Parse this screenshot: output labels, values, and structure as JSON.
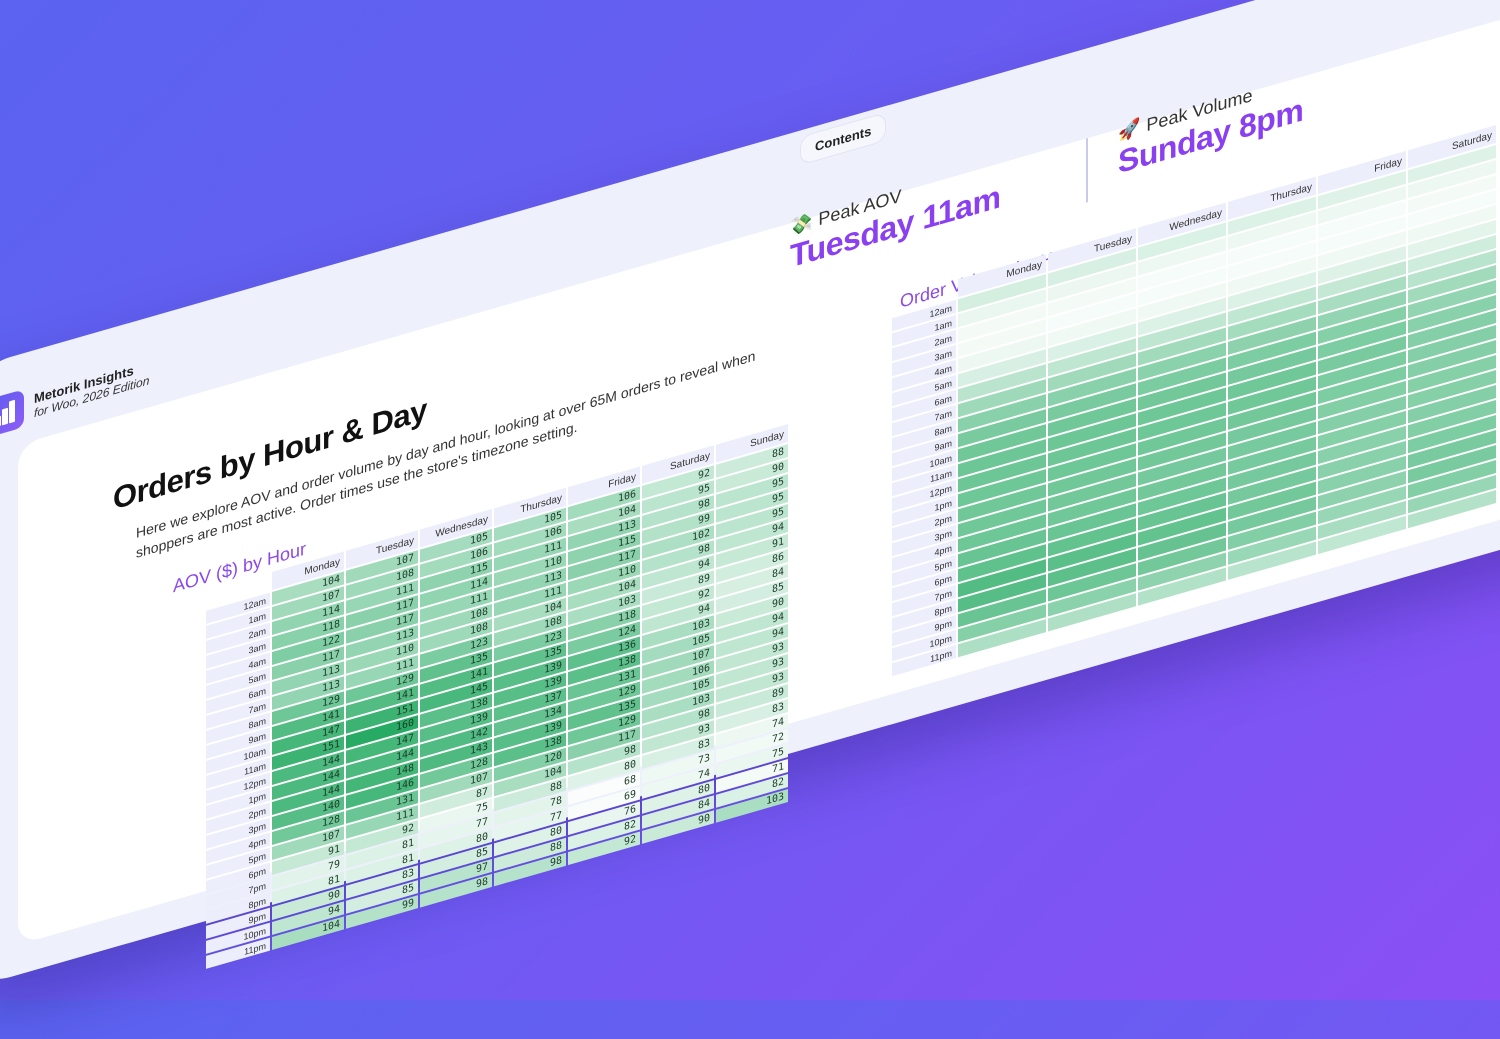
{
  "topbar": {
    "contents_label": "Contents"
  },
  "brand": {
    "name": "Metorik Insights",
    "edition": "for Woo, 2026 Edition"
  },
  "page": {
    "title": "Orders by Hour & Day",
    "description": "Here we explore AOV and order volume by day and hour, looking at over 65M orders to reveal when shoppers are most active. Order times use the store's timezone setting."
  },
  "stats": {
    "peak_aov": {
      "label": "Peak AOV",
      "value": "Tuesday 11am",
      "icon": "money-with-wings-icon"
    },
    "peak_volume": {
      "label": "Peak Volume",
      "value": "Sunday 8pm",
      "icon": "rocket-icon"
    }
  },
  "colors": {
    "accent": "#8a3ff0",
    "heat_low": "#ffffff",
    "heat_high": "#27ab64"
  },
  "aov_chart": {
    "heading": "AOV ($) by Hour",
    "days": [
      "Monday",
      "Tuesday",
      "Wednesday",
      "Thursday",
      "Friday",
      "Saturday",
      "Sunday"
    ],
    "hours": [
      "12am",
      "1am",
      "2am",
      "3am",
      "4am",
      "5am",
      "6am",
      "7am",
      "8am",
      "9am",
      "10am",
      "11am",
      "12pm",
      "1pm",
      "2pm",
      "3pm",
      "4pm",
      "5pm",
      "6pm",
      "7pm",
      "8pm",
      "9pm",
      "10pm",
      "11pm"
    ],
    "values": [
      [
        104,
        107,
        105,
        105,
        106,
        92,
        88
      ],
      [
        107,
        108,
        106,
        106,
        104,
        95,
        90
      ],
      [
        114,
        111,
        115,
        111,
        113,
        98,
        95
      ],
      [
        118,
        117,
        114,
        110,
        115,
        99,
        95
      ],
      [
        122,
        117,
        111,
        113,
        117,
        102,
        95
      ],
      [
        117,
        113,
        108,
        111,
        110,
        98,
        94
      ],
      [
        113,
        110,
        108,
        104,
        104,
        94,
        91
      ],
      [
        113,
        111,
        123,
        108,
        103,
        89,
        86
      ],
      [
        129,
        129,
        135,
        123,
        118,
        92,
        84
      ],
      [
        141,
        141,
        141,
        135,
        124,
        94,
        85
      ],
      [
        147,
        151,
        145,
        139,
        136,
        103,
        90
      ],
      [
        151,
        160,
        138,
        139,
        138,
        105,
        94
      ],
      [
        144,
        147,
        139,
        137,
        131,
        107,
        94
      ],
      [
        144,
        144,
        142,
        134,
        129,
        106,
        93
      ],
      [
        144,
        148,
        143,
        139,
        135,
        105,
        93
      ],
      [
        140,
        146,
        128,
        138,
        129,
        103,
        93
      ],
      [
        128,
        131,
        107,
        120,
        117,
        98,
        89
      ],
      [
        107,
        111,
        87,
        104,
        98,
        93,
        83
      ],
      [
        91,
        92,
        75,
        88,
        80,
        83,
        74
      ],
      [
        79,
        81,
        77,
        78,
        68,
        73,
        72
      ],
      [
        81,
        81,
        80,
        77,
        69,
        74,
        75
      ],
      [
        90,
        83,
        85,
        80,
        76,
        80,
        71
      ],
      [
        94,
        85,
        97,
        88,
        82,
        84,
        82
      ],
      [
        104,
        99,
        98,
        98,
        92,
        90,
        103
      ]
    ]
  },
  "volume_chart": {
    "heading": "Order Volume by Hour",
    "days": [
      "Monday",
      "Tuesday",
      "Wednesday",
      "Thursday",
      "Friday",
      "Saturday"
    ],
    "hours": [
      "12am",
      "1am",
      "2am",
      "3am",
      "4am",
      "5am",
      "6am",
      "7am",
      "8am",
      "9am",
      "10am",
      "11am",
      "12pm",
      "1pm",
      "2pm",
      "3pm",
      "4pm",
      "5pm",
      "6pm",
      "7pm",
      "8pm",
      "9pm",
      "10pm",
      "11pm"
    ],
    "levels": [
      [
        0.2,
        0.18,
        0.17,
        0.16,
        0.15,
        0.15
      ],
      [
        0.1,
        0.09,
        0.08,
        0.08,
        0.08,
        0.08
      ],
      [
        0.05,
        0.05,
        0.04,
        0.04,
        0.04,
        0.05
      ],
      [
        0.05,
        0.04,
        0.04,
        0.04,
        0.04,
        0.04
      ],
      [
        0.08,
        0.07,
        0.07,
        0.07,
        0.07,
        0.07
      ],
      [
        0.18,
        0.17,
        0.16,
        0.16,
        0.15,
        0.13
      ],
      [
        0.32,
        0.3,
        0.3,
        0.29,
        0.27,
        0.22
      ],
      [
        0.45,
        0.44,
        0.43,
        0.42,
        0.4,
        0.33
      ],
      [
        0.55,
        0.55,
        0.54,
        0.53,
        0.5,
        0.43
      ],
      [
        0.62,
        0.62,
        0.61,
        0.6,
        0.56,
        0.5
      ],
      [
        0.66,
        0.66,
        0.65,
        0.64,
        0.6,
        0.55
      ],
      [
        0.68,
        0.68,
        0.67,
        0.66,
        0.62,
        0.57
      ],
      [
        0.68,
        0.68,
        0.67,
        0.66,
        0.61,
        0.57
      ],
      [
        0.67,
        0.67,
        0.66,
        0.65,
        0.6,
        0.57
      ],
      [
        0.66,
        0.66,
        0.65,
        0.64,
        0.58,
        0.56
      ],
      [
        0.66,
        0.65,
        0.64,
        0.63,
        0.57,
        0.56
      ],
      [
        0.67,
        0.66,
        0.65,
        0.63,
        0.56,
        0.57
      ],
      [
        0.7,
        0.69,
        0.67,
        0.64,
        0.55,
        0.58
      ],
      [
        0.74,
        0.72,
        0.7,
        0.64,
        0.55,
        0.6
      ],
      [
        0.8,
        0.76,
        0.72,
        0.65,
        0.55,
        0.62
      ],
      [
        0.78,
        0.75,
        0.71,
        0.64,
        0.53,
        0.62
      ],
      [
        0.7,
        0.68,
        0.65,
        0.58,
        0.48,
        0.58
      ],
      [
        0.56,
        0.54,
        0.52,
        0.47,
        0.4,
        0.48
      ],
      [
        0.38,
        0.37,
        0.36,
        0.33,
        0.29,
        0.35
      ]
    ]
  }
}
